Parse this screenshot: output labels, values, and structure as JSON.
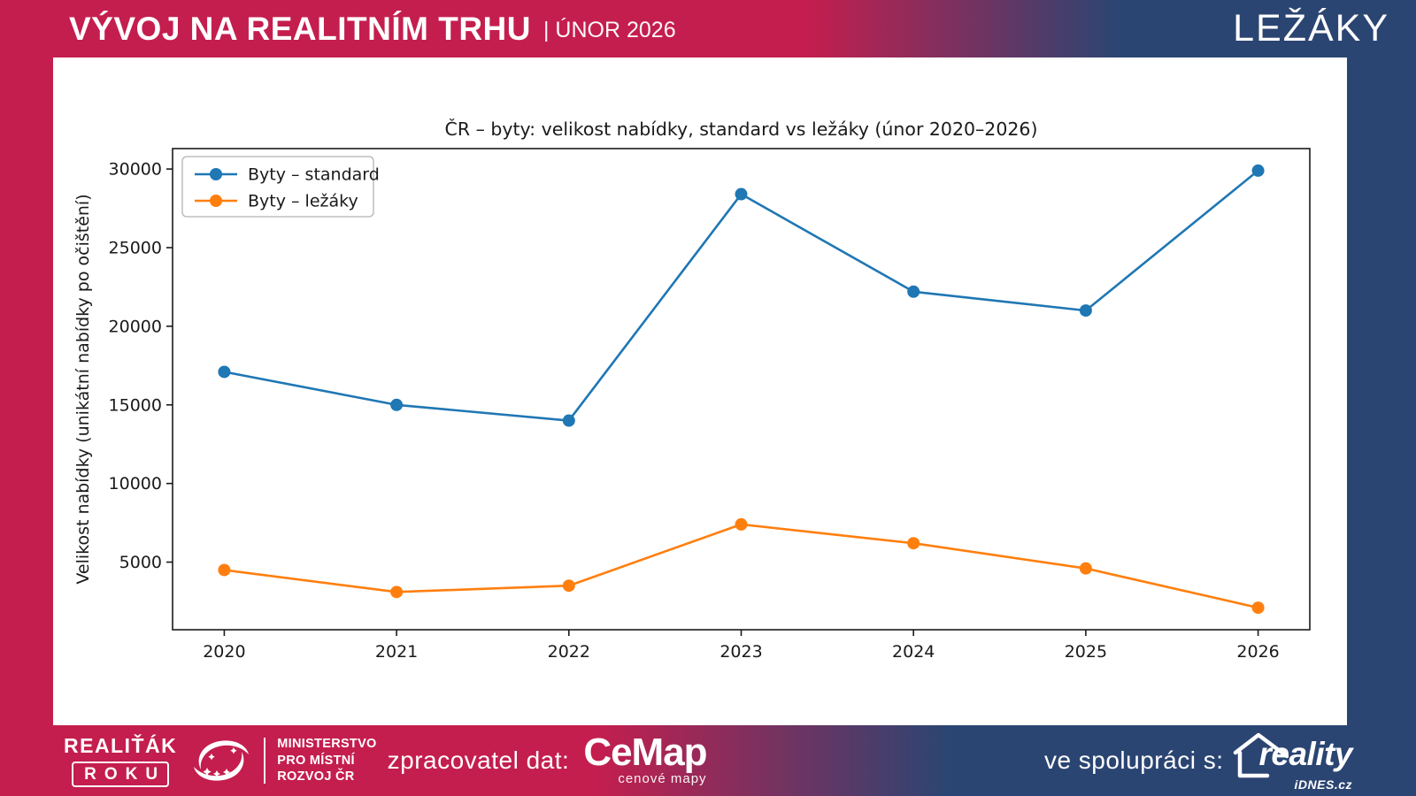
{
  "colors": {
    "crimson": "#c41e4e",
    "navy": "#2b4572",
    "blue": "#1f77b4",
    "orange": "#ff7f0e"
  },
  "header": {
    "title": "VÝVOJ NA REALITNÍM TRHU",
    "subtitle": "| ÚNOR 2026",
    "badge": "LEŽÁKY"
  },
  "chart_data": {
    "type": "line",
    "title": "ČR – byty: velikost nabídky, standard vs ležáky (únor 2020–2026)",
    "xlabel": "",
    "ylabel": "Velikost nabídky (unikátní nabídky po očištění)",
    "x": [
      2020,
      2021,
      2022,
      2023,
      2024,
      2025,
      2026
    ],
    "series": [
      {
        "name": "Byty – standard",
        "color": "#1f77b4",
        "values": [
          17100,
          15000,
          14000,
          28400,
          22200,
          21000,
          29900
        ]
      },
      {
        "name": "Byty – ležáky",
        "color": "#ff7f0e",
        "values": [
          4500,
          3100,
          3500,
          7400,
          6200,
          4600,
          2100
        ]
      }
    ],
    "xlim": [
      2019.7,
      2026.3
    ],
    "ylim": [
      700,
      31300
    ],
    "xticks": [
      2020,
      2021,
      2022,
      2023,
      2024,
      2025,
      2026
    ],
    "yticks": [
      5000,
      10000,
      15000,
      20000,
      25000,
      30000
    ],
    "grid": false,
    "legend_position": "upper left"
  },
  "footer": {
    "realitak_line1": "REALIŤÁK",
    "realitak_line2": "ROKU",
    "ministry_lines": [
      "MINISTERSTVO",
      "PRO MÍSTNÍ",
      "ROZVOJ ČR"
    ],
    "data_label": "zpracovatel dat:",
    "cemap_name": "CeMap",
    "cemap_sub": "cenové mapy",
    "partner_label": "ve spolupráci s:",
    "partner_name": "reality",
    "partner_sub": "iDNES.cz"
  }
}
